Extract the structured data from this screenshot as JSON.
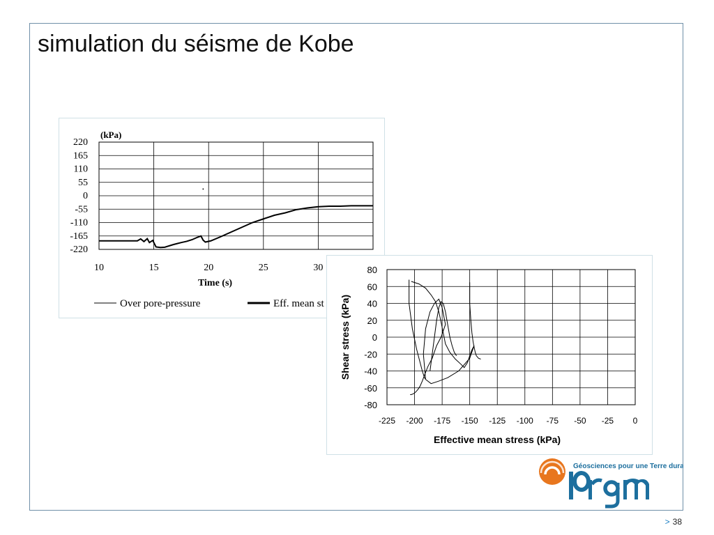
{
  "slide": {
    "title": "simulation du séisme de Kobe",
    "page_number": "38",
    "footer_arrow": ">"
  },
  "logo": {
    "name": "brgm",
    "tagline": "Géosciences pour une Terre durable",
    "colors": {
      "orange": "#e8761e",
      "blue": "#1d6f9e"
    }
  },
  "chart_data": [
    {
      "type": "line",
      "unit_label": "(kPa)",
      "xlabel": "Time (s)",
      "ylabel": "",
      "xlim": [
        10,
        35
      ],
      "ylim": [
        -220,
        220
      ],
      "x_ticks": [
        10,
        15,
        20,
        25,
        30
      ],
      "y_ticks": [
        220,
        165,
        110,
        55,
        0,
        -55,
        -110,
        -165,
        -220
      ],
      "grid": true,
      "legend": [
        "Over pore-pressure",
        "Eff. mean st"
      ],
      "legend_position": "bottom",
      "series": [
        {
          "name": "Over pore-pressure",
          "x": [
            19.5,
            19.5
          ],
          "y": [
            30,
            25
          ]
        },
        {
          "name": "Eff. mean st",
          "x": [
            10,
            12,
            13.5,
            13.8,
            14.1,
            14.4,
            14.6,
            14.9,
            15.2,
            15.6,
            16,
            16.8,
            17.5,
            18,
            18.5,
            19,
            19.3,
            19.5,
            19.7,
            20.2,
            21,
            22,
            23,
            24,
            25,
            26,
            27,
            28,
            29,
            30,
            31,
            32,
            33,
            34,
            35
          ],
          "y": [
            -185,
            -185,
            -185,
            -177,
            -188,
            -176,
            -192,
            -183,
            -210,
            -212,
            -211,
            -200,
            -192,
            -187,
            -180,
            -170,
            -165,
            -182,
            -190,
            -185,
            -170,
            -150,
            -130,
            -110,
            -95,
            -80,
            -70,
            -57,
            -50,
            -45,
            -43,
            -43,
            -41,
            -41,
            -41
          ]
        }
      ]
    },
    {
      "type": "line",
      "xlabel": "Effective mean stress (kPa)",
      "ylabel": "Shear stress (kPa)",
      "xlim": [
        -225,
        0
      ],
      "ylim": [
        -80,
        80
      ],
      "x_ticks": [
        -225,
        -200,
        -175,
        -150,
        -125,
        -100,
        -75,
        -50,
        -25,
        0
      ],
      "y_ticks": [
        80,
        60,
        40,
        20,
        0,
        -20,
        -40,
        -60,
        -80
      ],
      "grid": true,
      "series": [
        {
          "name": "",
          "x": [
            -205,
            -205,
            -202,
            -198,
            -195,
            -193,
            -191,
            -190,
            -192,
            -190,
            -186,
            -182,
            -178,
            -175,
            -172,
            -176,
            -180,
            -184,
            -188,
            -191,
            -193,
            -195,
            -197,
            -199,
            -201,
            -203,
            -204
          ],
          "y": [
            68,
            40,
            10,
            -15,
            -30,
            -40,
            -48,
            -50,
            -20,
            10,
            30,
            40,
            45,
            35,
            15,
            0,
            -10,
            -25,
            -35,
            -45,
            -52,
            -58,
            -62,
            -65,
            -67,
            -68,
            -68
          ]
        },
        {
          "name": "",
          "x": [
            -203,
            -196,
            -190,
            -185,
            -181,
            -178,
            -176,
            -174,
            -172,
            -168,
            -163,
            -158,
            -155,
            -152,
            -150,
            -148,
            -146,
            -150,
            -160,
            -170,
            -178,
            -185,
            -190
          ],
          "y": [
            66,
            63,
            58,
            50,
            42,
            30,
            18,
            5,
            -8,
            -18,
            -26,
            -32,
            -36,
            -30,
            -22,
            -15,
            -10,
            -25,
            -40,
            -48,
            -52,
            -55,
            -50
          ]
        },
        {
          "name": "",
          "x": [
            -186,
            -184,
            -182,
            -180,
            -178,
            -176,
            -174,
            -172,
            -170,
            -168,
            -166,
            -164,
            -162
          ],
          "y": [
            -40,
            -20,
            0,
            20,
            35,
            42,
            40,
            30,
            15,
            0,
            -10,
            -18,
            -22
          ]
        },
        {
          "name": "",
          "x": [
            -150,
            -150,
            -149,
            -148,
            -147,
            -146,
            -145,
            -144,
            -142,
            -140
          ],
          "y": [
            65,
            40,
            20,
            5,
            -5,
            -12,
            -18,
            -22,
            -25,
            -26
          ]
        }
      ]
    }
  ]
}
